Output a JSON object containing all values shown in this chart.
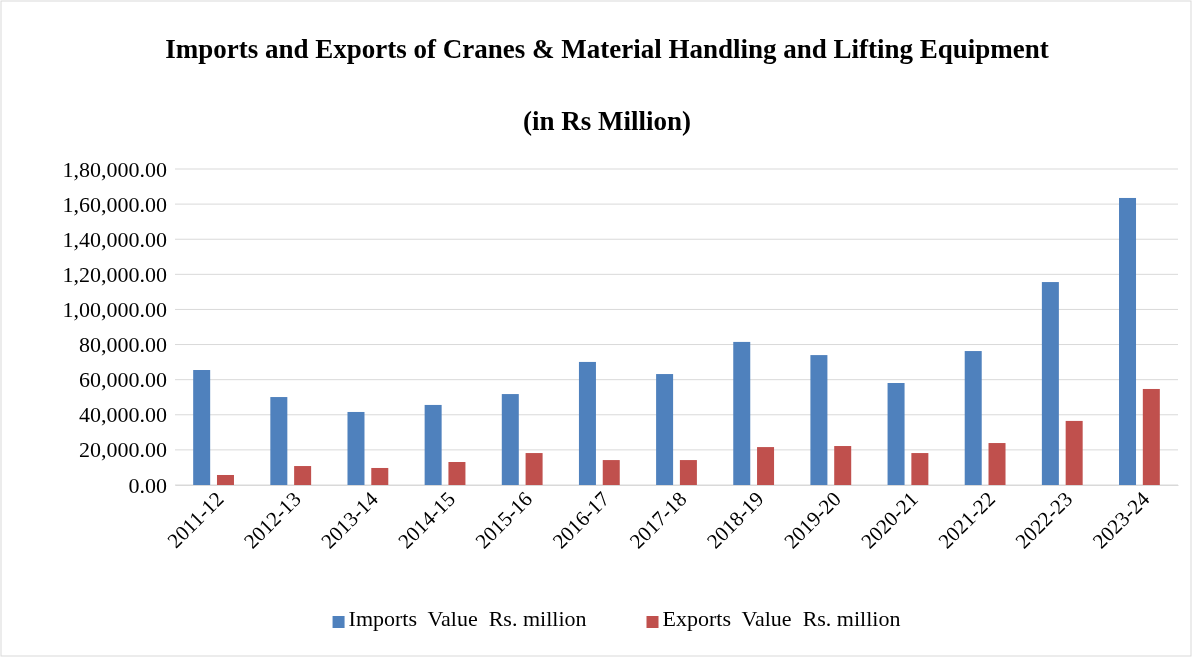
{
  "chart_data": {
    "type": "bar",
    "title": "Imports and Exports of Cranes & Material Handling and Lifting Equipment",
    "subtitle": "(in Rs Million)",
    "categories": [
      "2011-12",
      "2012-13",
      "2013-14",
      "2014-15",
      "2015-16",
      "2016-17",
      "2017-18",
      "2018-19",
      "2019-20",
      "2020-21",
      "2021-22",
      "2022-23",
      "2023-24"
    ],
    "series": [
      {
        "name": "Imports  Value  Rs. million",
        "color": "#4f81bd",
        "values": [
          65500,
          50100,
          41600,
          45600,
          51800,
          70100,
          63200,
          81500,
          74000,
          58100,
          76300,
          115600,
          163500
        ]
      },
      {
        "name": "Exports  Value  Rs. million",
        "color": "#c0504d",
        "values": [
          5700,
          10800,
          9700,
          13100,
          18200,
          14200,
          14200,
          21600,
          22200,
          18200,
          23900,
          36500,
          54700
        ]
      }
    ],
    "ylim": [
      0,
      180000
    ],
    "yticks": [
      {
        "value": 0,
        "label": "0.00"
      },
      {
        "value": 20000,
        "label": "20,000.00"
      },
      {
        "value": 40000,
        "label": "40,000.00"
      },
      {
        "value": 60000,
        "label": "60,000.00"
      },
      {
        "value": 80000,
        "label": "80,000.00"
      },
      {
        "value": 100000,
        "label": "1,00,000.00"
      },
      {
        "value": 120000,
        "label": "1,20,000.00"
      },
      {
        "value": 140000,
        "label": "1,40,000.00"
      },
      {
        "value": 160000,
        "label": "1,60,000.00"
      },
      {
        "value": 180000,
        "label": "1,80,000.00"
      }
    ],
    "grid": "y",
    "legend": "bottom"
  }
}
